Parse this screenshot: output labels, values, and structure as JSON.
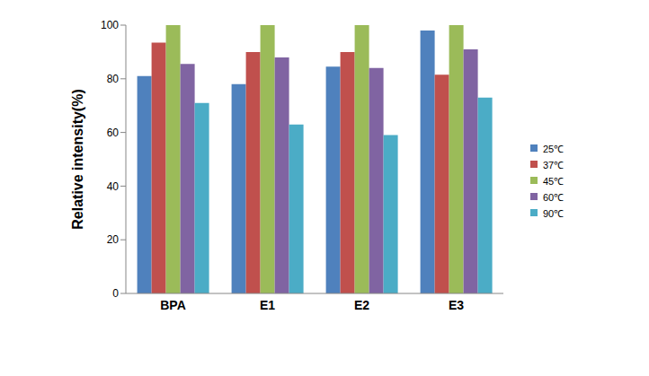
{
  "chart_data": {
    "type": "bar",
    "y_label": "Relative intensity(%)",
    "categories": [
      "BPA",
      "E1",
      "E2",
      "E3"
    ],
    "series": [
      {
        "name": "25℃",
        "color": "#4f81bd",
        "values": [
          81,
          78,
          84.5,
          98
        ]
      },
      {
        "name": "37℃",
        "color": "#c0504d",
        "values": [
          93.5,
          90,
          90,
          81.5
        ]
      },
      {
        "name": "45℃",
        "color": "#9bbb59",
        "values": [
          100,
          100,
          100,
          100
        ]
      },
      {
        "name": "60℃",
        "color": "#8064a2",
        "values": [
          85.5,
          88,
          84,
          91
        ]
      },
      {
        "name": "90℃",
        "color": "#4bacc6",
        "values": [
          71,
          63,
          59,
          73
        ]
      }
    ],
    "ylim": [
      0,
      100
    ],
    "yticks": [
      0,
      20,
      40,
      60,
      80,
      100
    ],
    "grid": false,
    "legend": "right"
  }
}
